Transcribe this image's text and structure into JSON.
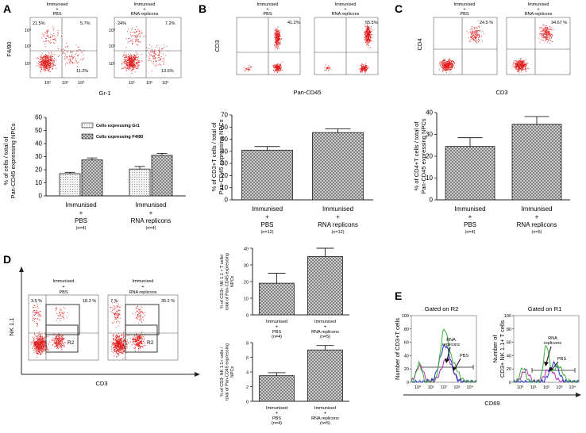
{
  "panels": {
    "A": {
      "letter": "A",
      "flow": {
        "left": {
          "title1": "Immunised",
          "title2": "+",
          "title3": "PBS",
          "q_ul": "21.5%",
          "q_ur": "5.7%",
          "q_lr": "11.2%"
        },
        "right": {
          "title1": "Immunised",
          "title2": "+",
          "title3": "RNA replicons",
          "q_ul": "24%",
          "q_ur": "7.2%",
          "q_lr": "13.6%"
        },
        "xlabel": "Gr-1",
        "ylabel": "F4/80",
        "ticks": [
          "10⁰",
          "10¹",
          "10²",
          "10³",
          "10⁴"
        ]
      }
    },
    "B": {
      "letter": "B",
      "flow": {
        "left": {
          "title1": "Immunised",
          "title2": "+",
          "title3": "PBS",
          "q_ur": "41.2%"
        },
        "right": {
          "title1": "Immunised",
          "title2": "+",
          "title3": "RNA replicons",
          "q_ur": "55.5%"
        },
        "xlabel": "Pan-CD45",
        "ylabel": "CD3"
      }
    },
    "C": {
      "letter": "C",
      "flow": {
        "left": {
          "title1": "Immunised",
          "title2": "+",
          "title3": "PBS",
          "q_ur": "24.5 %"
        },
        "right": {
          "title1": "Immunised",
          "title2": "+",
          "title3": "RNA replicons",
          "q_ur": "34.67 %"
        },
        "xlabel": "CD3",
        "ylabel": "CD4"
      }
    },
    "D": {
      "letter": "D",
      "flow": {
        "left": {
          "title1": "Immunised",
          "title2": "+",
          "title3": "PBS",
          "q_ul": "3.5 %",
          "q_ur": "18.3 %",
          "gate1": "R1",
          "gate2": "R2"
        },
        "right": {
          "title1": "Immunised",
          "title2": "+",
          "title3": "RNA replicons",
          "q_ul": "7 %",
          "q_ur": "35.2 %",
          "gate1": "R1",
          "gate2": "R2"
        },
        "xlabel": "CD3",
        "ylabel": "NK 1.1"
      }
    },
    "E": {
      "letter": "E",
      "left": {
        "title": "Gated on R2",
        "ylabel1": "Number of CD3+T cells",
        "ann1": "RNA",
        "ann2": "replicons",
        "ann3": "PBS"
      },
      "right": {
        "title": "Gated on R1",
        "ylabel1": "Number of",
        "ylabel2": "CD3+ NK 1.1+ T cells",
        "ann1": "RNA",
        "ann2": "replicons",
        "ann3": "PBS"
      },
      "xlabel": "CD69",
      "ymax_label": "100",
      "yticks": [
        "0",
        "20",
        "40",
        "60",
        "80",
        "100"
      ],
      "xticks": [
        "10⁰",
        "10¹",
        "10²",
        "10³",
        "10⁴"
      ]
    }
  },
  "colors": {
    "dots": "#e21b1b",
    "green": "#3bb33b",
    "blue": "#2233cc",
    "purple": "#b02fb0"
  },
  "chart_data": [
    {
      "id": "A",
      "type": "bar",
      "categories": [
        {
          "l1": "Immunised",
          "l2": "+",
          "l3": "PBS",
          "n": "(n=4)"
        },
        {
          "l1": "Immunised",
          "l2": "+",
          "l3": "RNA replicons",
          "n": "(n=4)"
        }
      ],
      "series": [
        {
          "name": "Cells expressing Gr1",
          "values": [
            17,
            20.5
          ],
          "errors": [
            1,
            2
          ]
        },
        {
          "name": "Cells expressing F4/80",
          "values": [
            27.5,
            31
          ],
          "errors": [
            1.5,
            1.5
          ]
        }
      ],
      "ylabel1": "% of cells / total of",
      "ylabel2": "Pan-CD45 expressing NPCs",
      "ylim": [
        0,
        60
      ],
      "yticks": [
        "0",
        "10",
        "20",
        "30",
        "40",
        "50",
        "60"
      ]
    },
    {
      "id": "B",
      "type": "bar",
      "categories": [
        {
          "l1": "Immunised",
          "l2": "+",
          "l3": "PBS",
          "n": "(n=12)"
        },
        {
          "l1": "Immunised",
          "l2": "+",
          "l3": "RNA replicons",
          "n": "(n=12)"
        }
      ],
      "values": [
        41,
        55.5
      ],
      "errors": [
        3,
        3
      ],
      "ylabel1": "% of CD3+T cells / total of",
      "ylabel2": "Pan-CD45 expressing NPCs",
      "ylim": [
        0,
        70
      ],
      "yticks": [
        "0",
        "10",
        "20",
        "30",
        "40",
        "50",
        "60",
        "70"
      ]
    },
    {
      "id": "C",
      "type": "bar",
      "categories": [
        {
          "l1": "Immunised",
          "l2": "+",
          "l3": "PBS",
          "n": "(n=4)"
        },
        {
          "l1": "Immunised",
          "l2": "+",
          "l3": "RNA replicons",
          "n": "(n=5)"
        }
      ],
      "values": [
        24.5,
        34.7
      ],
      "errors": [
        4,
        3.5
      ],
      "ylabel1": "% of CD4+T cells / total of",
      "ylabel2": "Pan-CD45 expressing NPCs",
      "ylim": [
        0,
        40
      ],
      "yticks": [
        "0",
        "10",
        "20",
        "30",
        "40"
      ]
    },
    {
      "id": "D1",
      "type": "bar",
      "categories": [
        {
          "l1": "Immunised",
          "l2": "+",
          "l3": "PBS",
          "n": "(n=4)"
        },
        {
          "l1": "Immunised",
          "l2": "+",
          "l3": "RNA replicons",
          "n": "(n=5)"
        }
      ],
      "values": [
        19,
        35
      ],
      "errors": [
        6,
        5
      ],
      "ylabel1": "% of CD3+ NK 1.1 + T cells/",
      "ylabel2": "total of Pan-CD45 expressing",
      "ylabel3": "NPCs",
      "ylim": [
        0,
        40
      ],
      "yticks": [
        "0",
        "10",
        "20",
        "30",
        "40"
      ]
    },
    {
      "id": "D2",
      "type": "bar",
      "categories": [
        {
          "l1": "Immunised",
          "l2": "+",
          "l3": "PBS",
          "n": "(n=4)"
        },
        {
          "l1": "Immunised",
          "l2": "+",
          "l3": "RNA replicons",
          "n": "(n=5)"
        }
      ],
      "values": [
        3.5,
        7
      ],
      "errors": [
        0.4,
        0.6
      ],
      "ylabel1": "% of CD3- NK 1.1+ cells /",
      "ylabel2": "total of Pan-CD45 expressing",
      "ylabel3": "NPCs",
      "ylim": [
        0,
        8
      ],
      "yticks": [
        "0",
        "2",
        "4",
        "6",
        "8"
      ]
    }
  ]
}
